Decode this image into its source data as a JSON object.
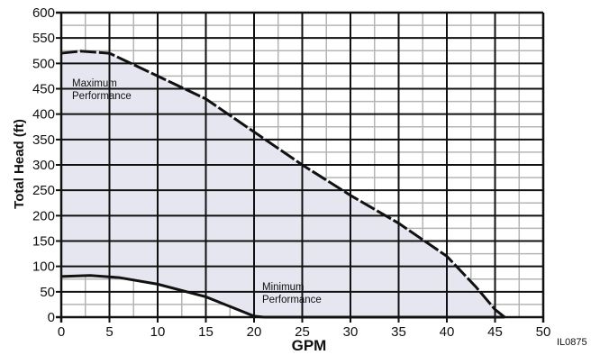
{
  "chart_data": {
    "type": "area",
    "title": "",
    "xlabel": "GPM",
    "ylabel": "Total Head (ft)",
    "xlim": [
      0,
      50
    ],
    "ylim": [
      0,
      600
    ],
    "x_ticks": [
      "0",
      "5",
      "10",
      "15",
      "20",
      "25",
      "30",
      "35",
      "40",
      "45",
      "50"
    ],
    "y_ticks": [
      "0",
      "50",
      "100",
      "150",
      "200",
      "250",
      "300",
      "350",
      "400",
      "450",
      "500",
      "550",
      "600"
    ],
    "grid": true,
    "fill_color": "#e5e6ef",
    "grid_major_color": "#111111",
    "grid_minor_color": "#b5b5b5",
    "series": [
      {
        "name": "Maximum Performance",
        "x": [
          0,
          2,
          5,
          10,
          15,
          20,
          25,
          30,
          35,
          40,
          43,
          45,
          46
        ],
        "y": [
          520,
          524,
          520,
          475,
          430,
          365,
          300,
          240,
          185,
          120,
          60,
          15,
          0
        ]
      },
      {
        "name": "Minimum Performance",
        "x": [
          0,
          3,
          6,
          10,
          15,
          20,
          21
        ],
        "y": [
          80,
          82,
          78,
          65,
          40,
          2,
          0
        ]
      }
    ],
    "annotations": [
      {
        "line1": "Maximum",
        "line2": "Performance"
      },
      {
        "line1": "Minimum",
        "line2": "Performance"
      }
    ],
    "figure_id": "IL0875"
  }
}
